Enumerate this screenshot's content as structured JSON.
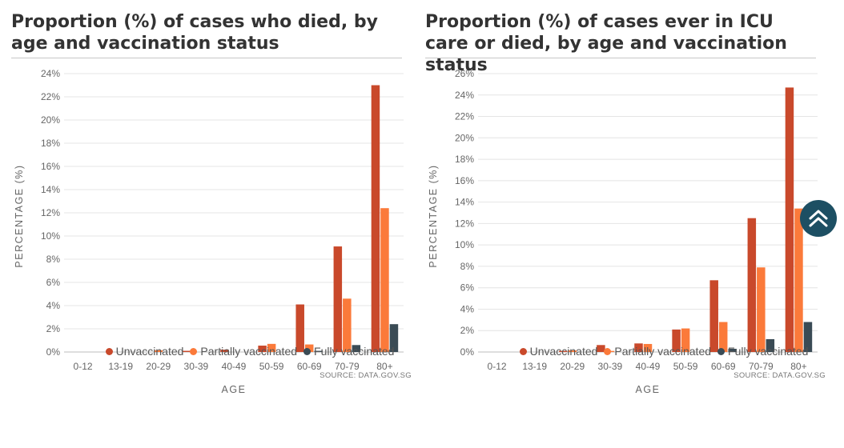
{
  "colors": {
    "unvaccinated": "#c9492b",
    "partially_vaccinated": "#fb7a3a",
    "fully_vaccinated": "#3a4b55",
    "scroll_button": "#1d4f63"
  },
  "scroll_top_button": {
    "icon": "double-chevron-up-icon"
  },
  "charts": [
    {
      "title": "Proportion (%) of cases who died, by age and vaccination status",
      "xlabel": "AGE",
      "ylabel": "PERCENTAGE (%)",
      "source": "SOURCE: DATA.GOV.SG",
      "legend": [
        "Unvaccinated",
        "Partially vaccinated",
        "Fully vaccinated"
      ]
    },
    {
      "title": "Proportion (%) of cases ever in ICU care or died, by age and vaccination status",
      "xlabel": "AGE",
      "ylabel": "PERCENTAGE (%)",
      "source": "SOURCE: DATA.GOV.SG",
      "legend": [
        "Unvaccinated",
        "Partially vaccinated",
        "Fully vaccinated"
      ]
    }
  ],
  "chart_data": [
    {
      "type": "bar",
      "title": "Proportion (%) of cases who died, by age and vaccination status",
      "xlabel": "AGE",
      "ylabel": "PERCENTAGE (%)",
      "categories": [
        "0-12",
        "13-19",
        "20-29",
        "30-39",
        "40-49",
        "50-59",
        "60-69",
        "70-79",
        "80+"
      ],
      "series": [
        {
          "name": "Unvaccinated",
          "values": [
            0,
            0,
            0,
            0.1,
            0.2,
            0.55,
            4.1,
            9.1,
            23.0
          ]
        },
        {
          "name": "Partially vaccinated",
          "values": [
            0,
            0,
            0.15,
            0,
            0,
            0.7,
            0.65,
            4.6,
            12.4
          ]
        },
        {
          "name": "Fully vaccinated",
          "values": [
            0,
            0,
            0,
            0,
            0,
            0,
            0.1,
            0.6,
            2.4
          ]
        }
      ],
      "yticks": [
        0,
        2,
        4,
        6,
        8,
        10,
        12,
        14,
        16,
        18,
        20,
        22,
        24
      ],
      "ytick_labels": [
        "0%",
        "2%",
        "4%",
        "6%",
        "8%",
        "10%",
        "12%",
        "14%",
        "16%",
        "18%",
        "20%",
        "22%",
        "24%"
      ],
      "ylim": [
        0,
        24
      ],
      "grid": true,
      "legend_position": "bottom"
    },
    {
      "type": "bar",
      "title": "Proportion (%) of cases ever in ICU care or died, by age and vaccination status",
      "xlabel": "AGE",
      "ylabel": "PERCENTAGE (%)",
      "categories": [
        "0-12",
        "13-19",
        "20-29",
        "30-39",
        "40-49",
        "50-59",
        "60-69",
        "70-79",
        "80+"
      ],
      "series": [
        {
          "name": "Unvaccinated",
          "values": [
            0,
            0,
            0.1,
            0.65,
            0.8,
            2.1,
            6.7,
            12.5,
            24.7
          ]
        },
        {
          "name": "Partially vaccinated",
          "values": [
            0,
            0,
            0.15,
            0.1,
            0.75,
            2.2,
            2.8,
            7.9,
            13.4
          ]
        },
        {
          "name": "Fully vaccinated",
          "values": [
            0,
            0,
            0,
            0,
            0,
            0,
            0.3,
            1.2,
            2.8
          ]
        }
      ],
      "yticks": [
        0,
        2,
        4,
        6,
        8,
        10,
        12,
        14,
        16,
        18,
        20,
        22,
        24,
        26
      ],
      "ytick_labels": [
        "0%",
        "2%",
        "4%",
        "6%",
        "8%",
        "10%",
        "12%",
        "14%",
        "16%",
        "18%",
        "20%",
        "22%",
        "24%",
        "26%"
      ],
      "ylim": [
        0,
        26
      ],
      "grid": true,
      "legend_position": "bottom"
    }
  ]
}
